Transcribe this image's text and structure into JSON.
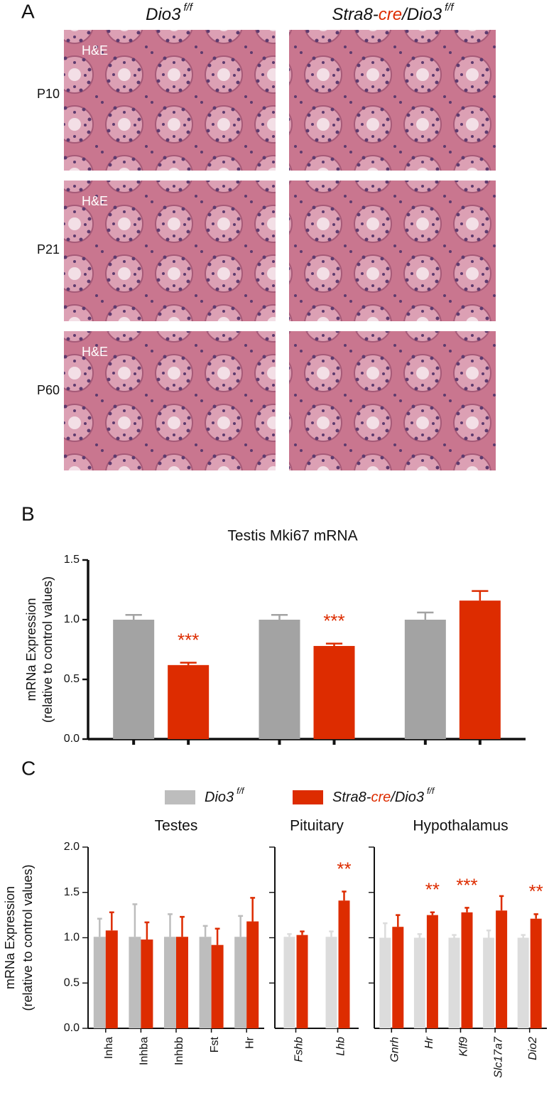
{
  "genotypes": [
    {
      "parts": [
        "Dio3"
      ],
      "sup": "f/f"
    },
    {
      "parts": [
        "Stra8-",
        "cre",
        "/Dio3"
      ],
      "highlight": 1,
      "sup": "f/f"
    }
  ],
  "panel_a": {
    "label": "A",
    "rows": [
      "P10",
      "P21",
      "P60"
    ],
    "stain": "H&E"
  },
  "panel_b": {
    "label": "B"
  },
  "panel_c": {
    "label": "C"
  },
  "chart_data": [
    {
      "type": "bar",
      "title": "Testis Mki67 mRNA",
      "ylabel": [
        "mRNa Expression",
        "(relative to control values)"
      ],
      "categories": [
        null,
        null,
        null
      ],
      "series": [
        {
          "genotype": 0,
          "color": "#a3a3a3",
          "values": [
            1.0,
            1.0,
            1.0
          ],
          "errors": [
            0.04,
            0.04,
            0.06
          ]
        },
        {
          "genotype": 1,
          "color": "#dd2c00",
          "values": [
            0.62,
            0.78,
            1.16
          ],
          "errors": [
            0.02,
            0.02,
            0.08
          ]
        }
      ],
      "significance": [
        "***",
        "***",
        null
      ],
      "ylim": [
        0,
        1.5
      ],
      "yticks": [
        {
          "value": 0,
          "label": "0.0"
        },
        {
          "value": 0.5,
          "label": "0.5"
        },
        {
          "value": 1,
          "label": "1.0"
        },
        {
          "value": 1.5,
          "label": "1.5"
        }
      ]
    },
    {
      "type": "bar",
      "title": "Testes",
      "ylabel": [
        "mRNa Expression",
        "(relative to control values)"
      ],
      "legend": true,
      "categories": [
        "Inha",
        "Inhba",
        "Inhbb",
        "Fst",
        "Hr"
      ],
      "series": [
        {
          "genotype": 0,
          "color": "#bdbdbd",
          "values": [
            1.01,
            1.01,
            1.01,
            1.01,
            1.01
          ],
          "errors": [
            0.2,
            0.36,
            0.25,
            0.12,
            0.23
          ]
        },
        {
          "genotype": 1,
          "color": "#dd2c00",
          "values": [
            1.08,
            0.98,
            1.01,
            0.92,
            1.18
          ],
          "errors": [
            0.2,
            0.19,
            0.22,
            0.18,
            0.26
          ]
        }
      ],
      "ylim": [
        0,
        2
      ],
      "yticks": [
        {
          "value": 0,
          "label": "0.0"
        },
        {
          "value": 0.5,
          "label": "0.5"
        },
        {
          "value": 1,
          "label": "1.0"
        },
        {
          "value": 1.5,
          "label": "1.5"
        },
        {
          "value": 2,
          "label": "2.0"
        }
      ]
    },
    {
      "type": "bar",
      "title": "Pituitary",
      "italic_labels": true,
      "show_tick_labels": false,
      "categories": [
        "Fshb",
        "Lhb"
      ],
      "series": [
        {
          "genotype": 0,
          "color": "#dcdcdc",
          "values": [
            1.01,
            1.01
          ],
          "errors": [
            0.03,
            0.06
          ]
        },
        {
          "genotype": 1,
          "color": "#dd2c00",
          "values": [
            1.03,
            1.41
          ],
          "errors": [
            0.04,
            0.1
          ]
        }
      ],
      "significance": [
        null,
        "**"
      ],
      "ylim": [
        0,
        2
      ],
      "yticks": [
        0.5,
        1,
        1.5,
        2
      ]
    },
    {
      "type": "bar",
      "title": "Hypothalamus",
      "italic_labels": true,
      "show_tick_labels": false,
      "categories": [
        "Gnrh",
        "Hr",
        "Klf9",
        "Slc17a7",
        "Dio2"
      ],
      "series": [
        {
          "genotype": 0,
          "color": "#dcdcdc",
          "values": [
            1.0,
            1.0,
            1.0,
            1.0,
            1.0
          ],
          "errors": [
            0.16,
            0.04,
            0.03,
            0.08,
            0.03
          ]
        },
        {
          "genotype": 1,
          "color": "#dd2c00",
          "values": [
            1.12,
            1.25,
            1.28,
            1.3,
            1.21
          ],
          "errors": [
            0.13,
            0.03,
            0.05,
            0.16,
            0.05
          ]
        }
      ],
      "significance": [
        null,
        "**",
        "***",
        null,
        "**"
      ],
      "ylim": [
        0,
        2
      ],
      "yticks": [
        0.5,
        1,
        1.5,
        2
      ]
    }
  ]
}
